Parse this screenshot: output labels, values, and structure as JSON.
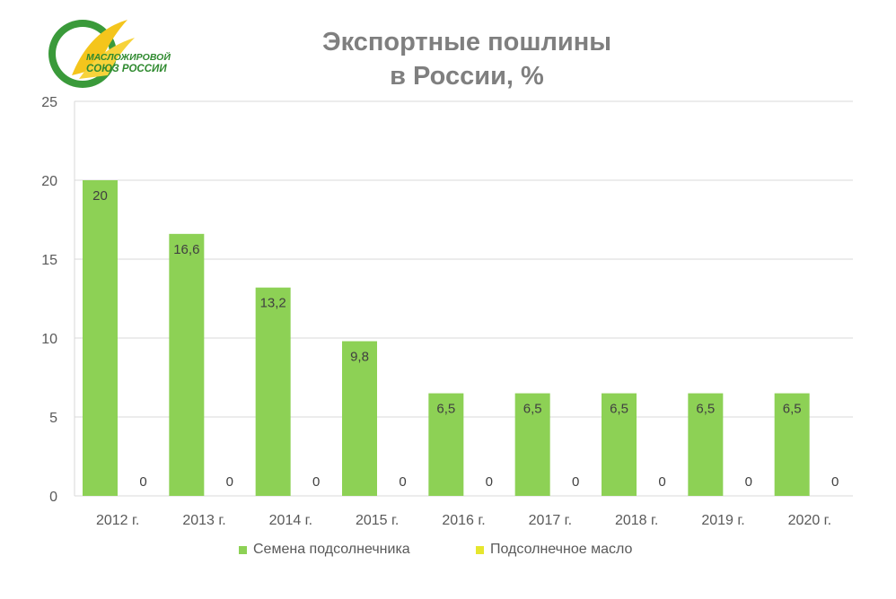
{
  "logo": {
    "line1": "МАСЛОЖИРОВОЙ",
    "line2": "СОЮЗ РОССИИ"
  },
  "chart_data": {
    "type": "bar",
    "title": [
      "Экспортные пошлины",
      "в России, %"
    ],
    "categories": [
      "2012 г.",
      "2013 г.",
      "2014 г.",
      "2015 г.",
      "2016 г.",
      "2017 г.",
      "2018 г.",
      "2019 г.",
      "2020 г."
    ],
    "series": [
      {
        "name": "Семена подсолнечника",
        "color": "#8dd155",
        "values": [
          20,
          16.6,
          13.2,
          9.8,
          6.5,
          6.5,
          6.5,
          6.5,
          6.5
        ],
        "labels": [
          "20",
          "16,6",
          "13,2",
          "9,8",
          "6,5",
          "6,5",
          "6,5",
          "6,5",
          "6,5"
        ]
      },
      {
        "name": "Подсолнечное  масло",
        "color": "#e6e62e",
        "values": [
          0,
          0,
          0,
          0,
          0,
          0,
          0,
          0,
          0
        ],
        "labels": [
          "0",
          "0",
          "0",
          "0",
          "0",
          "0",
          "0",
          "0",
          "0"
        ]
      }
    ],
    "ylim": [
      0,
      25
    ],
    "yticks": [
      0,
      5,
      10,
      15,
      20,
      25
    ],
    "grid": true,
    "legend_position": "bottom"
  }
}
